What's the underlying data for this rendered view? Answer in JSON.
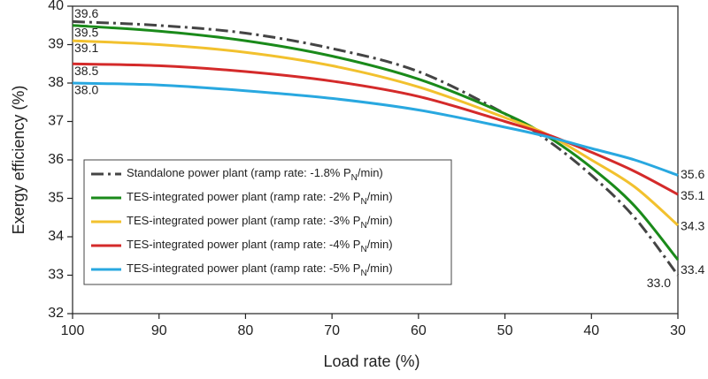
{
  "chart_data": {
    "type": "line",
    "x_label": "Load rate (%)",
    "y_label": "Exergy efficiency (%)",
    "x": [
      100,
      90,
      80,
      70,
      60,
      50,
      45,
      40,
      35,
      30
    ],
    "xlim": [
      100,
      30
    ],
    "xticks": [
      100,
      90,
      80,
      70,
      60,
      50,
      40,
      30
    ],
    "ylim": [
      32,
      40
    ],
    "yticks": [
      32,
      33,
      34,
      35,
      36,
      37,
      38,
      39,
      40
    ],
    "grid": false,
    "legend": "lower-left",
    "series": [
      {
        "name": "Standalone power plant (ramp rate: -1.8% PN/min)",
        "color": "#444444",
        "dash": "dashdot",
        "values": [
          39.6,
          39.5,
          39.3,
          38.9,
          38.3,
          37.2,
          36.5,
          35.6,
          34.5,
          33.0
        ],
        "value_labels": [
          "39.6",
          null,
          null,
          null,
          null,
          null,
          null,
          null,
          null,
          "33.0"
        ],
        "label_color": "#111111"
      },
      {
        "name": "TES-integrated power plant (ramp rate: -2% PN/min)",
        "color": "#1a8a1a",
        "values": [
          39.5,
          39.35,
          39.1,
          38.7,
          38.1,
          37.2,
          36.6,
          35.8,
          34.8,
          33.4
        ],
        "value_labels": [
          "39.5",
          null,
          null,
          null,
          null,
          null,
          null,
          null,
          null,
          "33.4"
        ],
        "label_color": "#1a8a1a"
      },
      {
        "name": "TES-integrated power plant (ramp rate: -3% PN/min)",
        "color": "#f2c12e",
        "values": [
          39.1,
          39.0,
          38.8,
          38.45,
          37.9,
          37.1,
          36.65,
          36.0,
          35.3,
          34.3
        ],
        "value_labels": [
          "39.1",
          null,
          null,
          null,
          null,
          null,
          null,
          null,
          null,
          "34.3"
        ],
        "label_color": "#e0b020"
      },
      {
        "name": "TES-integrated power plant (ramp rate: -4% PN/min)",
        "color": "#d42a2a",
        "values": [
          38.5,
          38.45,
          38.3,
          38.05,
          37.65,
          37.0,
          36.65,
          36.2,
          35.7,
          35.1
        ],
        "value_labels": [
          "38.5",
          null,
          null,
          null,
          null,
          null,
          null,
          null,
          null,
          "35.1"
        ],
        "label_color": "#d42a2a"
      },
      {
        "name": "TES-integrated power plant (ramp rate: -5% PN/min)",
        "color": "#29a8e0",
        "values": [
          38.0,
          37.95,
          37.8,
          37.6,
          37.3,
          36.85,
          36.6,
          36.3,
          36.0,
          35.6
        ],
        "value_labels": [
          "38.0",
          null,
          null,
          null,
          null,
          null,
          null,
          null,
          null,
          "35.6"
        ],
        "label_color": "#29a8e0"
      }
    ]
  }
}
